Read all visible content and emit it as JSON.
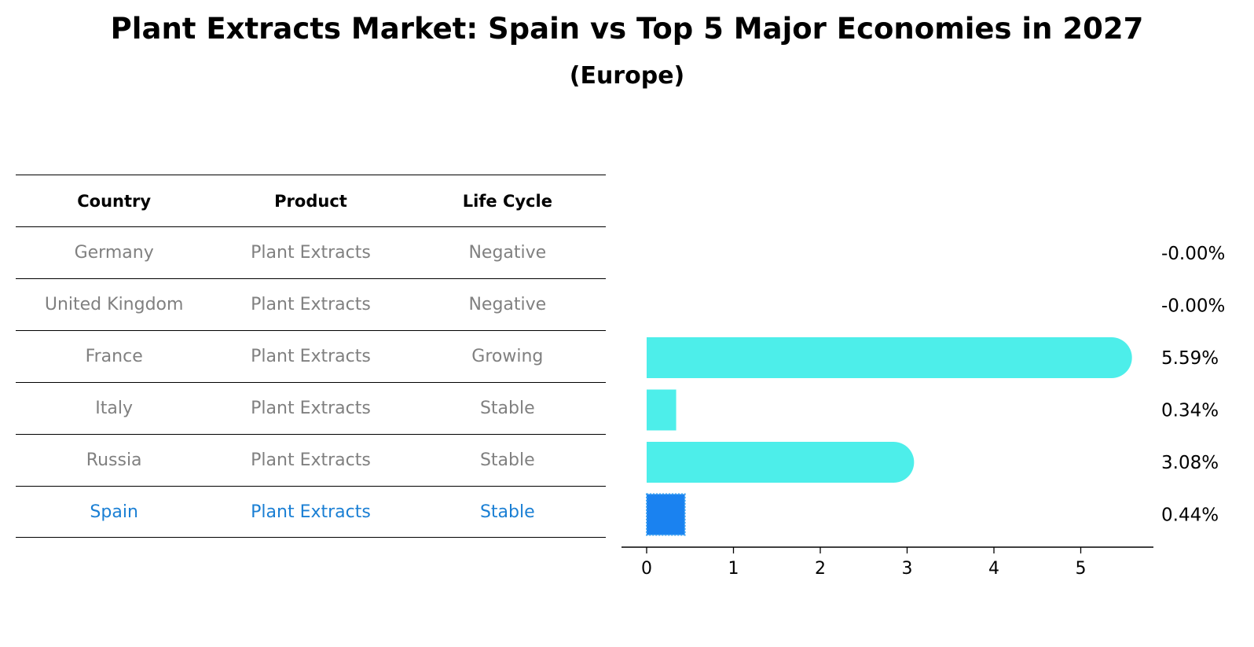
{
  "title": "Plant Extracts Market: Spain vs Top 5 Major Economies in 2027",
  "subtitle": "(Europe)",
  "table": {
    "headers": [
      "Country",
      "Product",
      "Life Cycle"
    ],
    "rows": [
      [
        "Germany",
        "Plant Extracts",
        "Negative"
      ],
      [
        "United Kingdom",
        "Plant Extracts",
        "Negative"
      ],
      [
        "France",
        "Plant Extracts",
        "Growing"
      ],
      [
        "Italy",
        "Plant Extracts",
        "Stable"
      ],
      [
        "Russia",
        "Plant Extracts",
        "Stable"
      ],
      [
        "Spain",
        "Plant Extracts",
        "Stable"
      ]
    ],
    "highlight_row": 5,
    "colors": {
      "text": "#808080",
      "highlight": "#1a7fd4"
    }
  },
  "chart_data": {
    "type": "bar",
    "orientation": "horizontal",
    "categories": [
      "Germany",
      "United Kingdom",
      "France",
      "Italy",
      "Russia",
      "Spain"
    ],
    "values": [
      -0.0,
      -0.0,
      5.59,
      0.34,
      3.08,
      0.44
    ],
    "value_labels": [
      "-0.00%",
      "-0.00%",
      "5.59%",
      "0.34%",
      "3.08%",
      "0.44%"
    ],
    "xticks": [
      "0",
      "1",
      "2",
      "3",
      "4",
      "5"
    ],
    "xlim": [
      -0.28,
      5.85
    ],
    "highlight_index": 5,
    "colors": {
      "bar": "#4deeea",
      "highlight": "#1a82f0",
      "highlight_border": "#3aa0f0"
    },
    "grid": false
  }
}
